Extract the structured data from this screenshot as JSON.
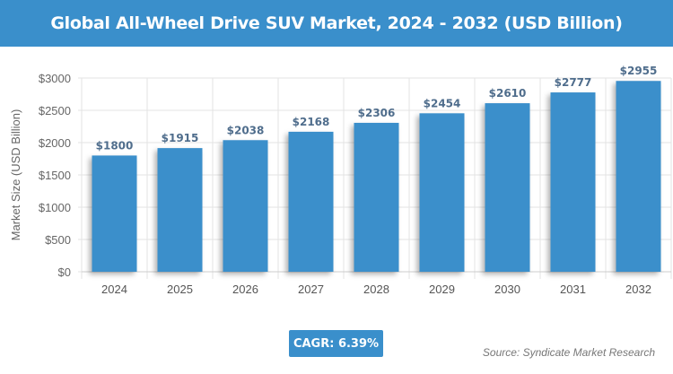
{
  "chart_data": {
    "type": "bar",
    "title": "Global All-Wheel Drive SUV Market, 2024 - 2032 (USD Billion)",
    "xlabel": "",
    "ylabel": "Market Size (USD Billion)",
    "categories": [
      "2024",
      "2025",
      "2026",
      "2027",
      "2028",
      "2029",
      "2030",
      "2031",
      "2032"
    ],
    "values": [
      1800,
      1915,
      2038,
      2168,
      2306,
      2454,
      2610,
      2777,
      2955
    ],
    "data_labels": [
      "$1800",
      "$1915",
      "$2038",
      "$2168",
      "$2306",
      "$2454",
      "$2610",
      "$2777",
      "$2955"
    ],
    "ylim": [
      0,
      3000
    ],
    "yticks": [
      0,
      500,
      1000,
      1500,
      2000,
      2500,
      3000
    ],
    "ytick_labels": [
      "$0",
      "$500",
      "$1000",
      "$1500",
      "$2000",
      "$2500",
      "$3000"
    ],
    "grid": true,
    "bar_color": "#3a8fcb"
  },
  "cagr": "CAGR: 6.39%",
  "source": "Source: Syndicate Market Research"
}
